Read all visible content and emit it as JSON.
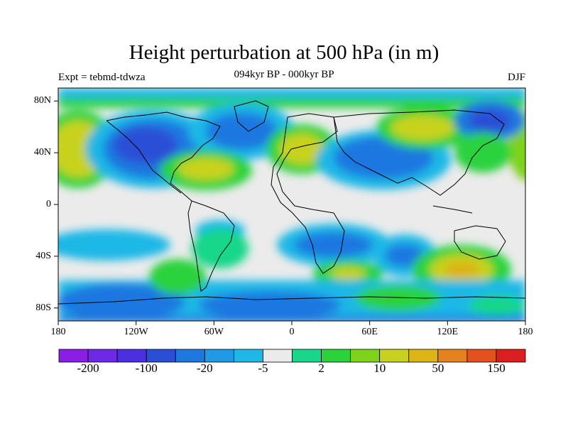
{
  "title": "Height perturbation at 500 hPa (in m)",
  "subtitle_left": "Expt = tebmd-tdwza",
  "subtitle_center": "094kyr BP - 000kyr BP",
  "subtitle_right": "DJF",
  "lat_ticks": [
    "80N",
    "40N",
    "0",
    "40S",
    "80S"
  ],
  "lon_ticks": [
    "180",
    "120W",
    "60W",
    "0",
    "60E",
    "120E",
    "180"
  ],
  "colorbar": {
    "colors": [
      "#8a1ee6",
      "#6e28e8",
      "#4b2fe0",
      "#2a4fd6",
      "#1f78e0",
      "#1f9ae6",
      "#1fb8e6",
      "#ebebeb",
      "#19d78a",
      "#2ad23c",
      "#7ed21a",
      "#c8d21e",
      "#dcb414",
      "#e6821e",
      "#e6501e",
      "#dc1e1e"
    ],
    "tick_labels": [
      "-200",
      "-100",
      "-20",
      "-5",
      "2",
      "10",
      "50",
      "150"
    ]
  }
}
